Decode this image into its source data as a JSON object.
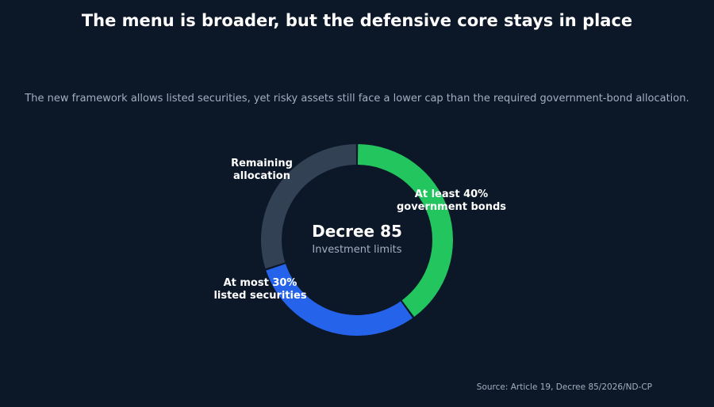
{
  "chart_data": {
    "type": "pie",
    "variant": "donut",
    "title": "The menu is broader, but the defensive core stays in place",
    "subtitle": "The new framework allows listed securities, yet risky assets still face a lower cap than the required government-bond allocation.",
    "center_title": "Decree 85",
    "center_subtitle": "Investment limits",
    "source": "Source: Article 19, Decree 85/2026/ND-CP",
    "slices": [
      {
        "label_lines": [
          "At least 40%",
          "government bonds"
        ],
        "value": 40,
        "color": "#22c55e"
      },
      {
        "label_lines": [
          "At most 30%",
          "listed securities"
        ],
        "value": 30,
        "color": "#2563eb"
      },
      {
        "label_lines": [
          "Remaining",
          "allocation"
        ],
        "value": 30,
        "color": "#334155"
      }
    ],
    "legend": "none"
  }
}
